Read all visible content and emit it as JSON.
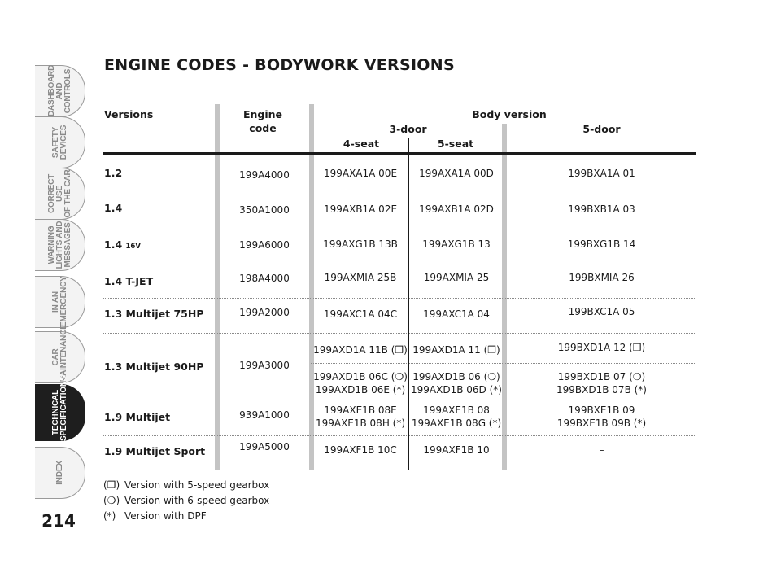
{
  "tabs": [
    {
      "label": "DASHBOARD\nAND CONTROLS",
      "active": false
    },
    {
      "label": "SAFETY\nDEVICES",
      "active": false
    },
    {
      "label": "CORRECT USE\nOF THE CAR",
      "active": false
    },
    {
      "label": "WARNING\nLIGHTS AND\nMESSAGES",
      "active": false
    },
    {
      "label": "IN AN\nEMERGENCY",
      "active": false
    },
    {
      "label": "CAR\nMAINTENANCE",
      "active": false
    },
    {
      "label": "TECHNICAL\nSPECIFICATIONS",
      "active": true
    },
    {
      "label": "INDEX",
      "active": false
    }
  ],
  "page_number": "214",
  "title": "ENGINE CODES - BODYWORK VERSIONS",
  "headers": {
    "versions": "Versions",
    "engine_code": "Engine code",
    "body_version": "Body version",
    "three_door": "3-door",
    "five_door": "5-door",
    "four_seat": "4-seat",
    "five_seat": "5-seat"
  },
  "rows": [
    {
      "version": "1.2",
      "engine": "199A4000",
      "three_4": "199AXA1A 00E",
      "three_5": "199AXA1A 00D",
      "five": "199BXA1A 01"
    },
    {
      "version": "1.4",
      "engine": "350A1000",
      "three_4": "199AXB1A 02E",
      "three_5": "199AXB1A 02D",
      "five": "199BXB1A 03"
    },
    {
      "version": "1.4",
      "version_suffix": "16V",
      "engine": "199A6000",
      "three_4": "199AXG1B 13B",
      "three_5": "199AXG1B 13",
      "five": "199BXG1B 14"
    },
    {
      "version": "1.4 T-JET",
      "engine": "198A4000",
      "three_4": "199AXMIA 25B",
      "three_5": "199AXMIA 25",
      "five": "199BXMIA 26"
    },
    {
      "version": "1.3 Multijet 75HP",
      "engine": "199A2000",
      "three_4": "199AXC1A 04C",
      "three_5": "199AXC1A 04",
      "five": "199BXC1A 05"
    },
    {
      "version": "1.3 Multijet 90HP",
      "engine": "199A3000",
      "three_4_a": "199AXD1A 11B (❒)",
      "three_5_a": "199AXD1A 11 (❒)",
      "five_a": "199BXD1A 12 (❒)",
      "three_4_b": "199AXD1B 06C (❍)\n199AXD1B 06E (*)",
      "three_5_b": "199AXD1B 06 (❍)\n199AXD1B 06D (*)",
      "five_b": "199BXD1B 07 (❍)\n199BXD1B 07B (*)"
    },
    {
      "version": "1.9 Multijet",
      "engine": "939A1000",
      "three_4": "199AXE1B 08E\n199AXE1B 08H (*)",
      "three_5": "199AXE1B 08\n199AXE1B 08G (*)",
      "five": "199BXE1B 09\n199BXE1B 09B (*)"
    },
    {
      "version": "1.9 Multijet Sport",
      "engine": "199A5000",
      "three_4": "199AXF1B 10C",
      "three_5": "199AXF1B 10",
      "five": "–"
    }
  ],
  "notes": [
    {
      "symbol": "(❒)",
      "text": "Version with 5-speed gearbox"
    },
    {
      "symbol": "(❍)",
      "text": "Version with 6-speed gearbox"
    },
    {
      "symbol": "(*)",
      "text": "Version with DPF"
    }
  ]
}
